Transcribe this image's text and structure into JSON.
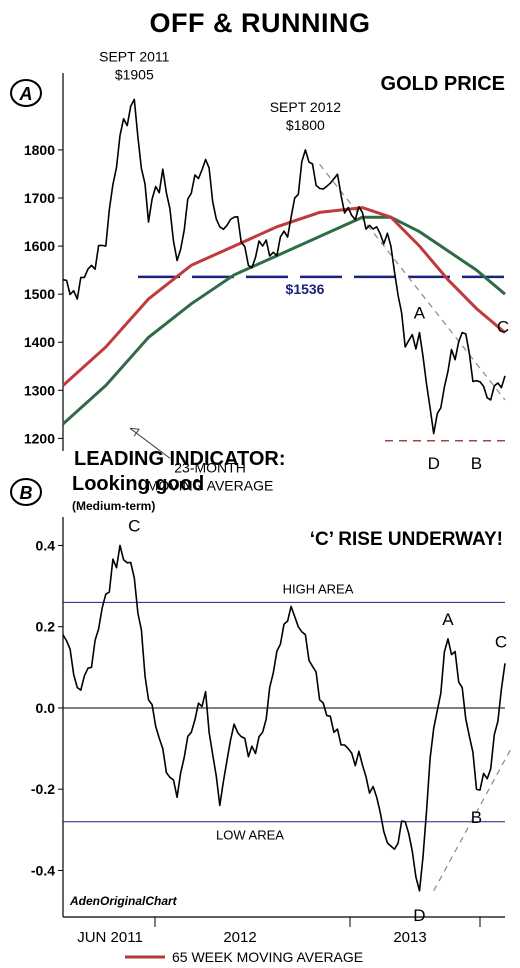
{
  "title": "OFF & RUNNING",
  "footer": {
    "legend_label": "65 WEEK MOVING AVERAGE",
    "legend_color": "#b33a3a"
  },
  "chart_data": [
    {
      "type": "line",
      "panel_letter": "A",
      "title": "GOLD PRICE",
      "ylim": [
        1180,
        1960
      ],
      "yticks": [
        1200,
        1300,
        1400,
        1500,
        1600,
        1700,
        1800
      ],
      "timeline": [
        "2011-04",
        "2013-11"
      ],
      "colors": {
        "price": "#000000",
        "ma65": "#c0393b",
        "ma23": "#2f6b45",
        "support": "#1a237e",
        "bottom": "#b04040",
        "trend": "#888888"
      },
      "series": [
        {
          "key": "price",
          "x": [
            "2011-04",
            "2011-05",
            "2011-06",
            "2011-07",
            "2011-08",
            "2011-09",
            "2011-10",
            "2011-11",
            "2011-12",
            "2012-01",
            "2012-02",
            "2012-03",
            "2012-04",
            "2012-05",
            "2012-06",
            "2012-07",
            "2012-08",
            "2012-09",
            "2012-10",
            "2012-11",
            "2012-12",
            "2013-01",
            "2013-02",
            "2013-03",
            "2013-04",
            "2013-05",
            "2013-06",
            "2013-07",
            "2013-08",
            "2013-09",
            "2013-10",
            "2013-11"
          ],
          "y": [
            1530,
            1490,
            1560,
            1600,
            1830,
            1905,
            1650,
            1760,
            1570,
            1710,
            1780,
            1640,
            1660,
            1560,
            1600,
            1580,
            1660,
            1800,
            1720,
            1740,
            1680,
            1670,
            1640,
            1600,
            1390,
            1420,
            1210,
            1340,
            1420,
            1320,
            1280,
            1330
          ]
        },
        {
          "key": "ma65",
          "x": [
            "2011-04",
            "2011-07",
            "2011-10",
            "2012-01",
            "2012-04",
            "2012-07",
            "2012-10",
            "2013-01",
            "2013-03",
            "2013-05",
            "2013-07",
            "2013-09",
            "2013-11"
          ],
          "y": [
            1310,
            1390,
            1490,
            1560,
            1600,
            1640,
            1670,
            1680,
            1660,
            1600,
            1530,
            1470,
            1420
          ]
        },
        {
          "key": "ma23",
          "x": [
            "2011-04",
            "2011-07",
            "2011-10",
            "2012-01",
            "2012-04",
            "2012-07",
            "2012-10",
            "2013-01",
            "2013-03",
            "2013-05",
            "2013-07",
            "2013-09",
            "2013-11"
          ],
          "y": [
            1230,
            1310,
            1410,
            1480,
            1540,
            1580,
            1620,
            1660,
            1660,
            1630,
            1590,
            1550,
            1500
          ]
        }
      ],
      "support_level": {
        "value": 1536,
        "label": "$1536"
      },
      "bottom_level": 1195,
      "trendline": {
        "x": [
          "2012-10",
          "2013-11"
        ],
        "y": [
          1770,
          1280
        ]
      },
      "annotations": [
        {
          "text": [
            "SEPT 2011",
            "$1905"
          ],
          "x": "2011-09",
          "y": 1905
        },
        {
          "text": [
            "SEPT 2012",
            "$1800"
          ],
          "x": "2012-09",
          "y": 1800
        },
        {
          "text": [
            "A"
          ],
          "x": "2013-05",
          "y": 1420
        },
        {
          "text": [
            "C"
          ],
          "x": "2013-11",
          "y": 1420
        },
        {
          "text": [
            "D"
          ],
          "x": "2013-06",
          "y": 1195
        },
        {
          "text": [
            "B"
          ],
          "x": "2013-09",
          "y": 1195
        },
        {
          "text": [
            "23-MONTH",
            "MOVING AVERAGE"
          ],
          "x": "2011-08",
          "y": 1300
        }
      ]
    },
    {
      "type": "line",
      "panel_letter": "B",
      "title": "LEADING INDICATOR:",
      "subtitle": "Looking good",
      "subtitle_note": "(Medium-term)",
      "headline": "‘C’ RISE UNDERWAY!",
      "ylim": [
        -0.49,
        0.47
      ],
      "yticks": [
        0.4,
        0.2,
        0.0,
        -0.2,
        -0.4
      ],
      "ytick_labels": [
        "0.4",
        "0.2",
        "0.0",
        "-0.2",
        "-0.4"
      ],
      "xticks": [
        "JUN 2011",
        "2012",
        "2013"
      ],
      "timeline": [
        "2011-04",
        "2013-11"
      ],
      "series": [
        {
          "key": "indicator",
          "x": [
            "2011-04",
            "2011-05",
            "2011-06",
            "2011-07",
            "2011-08",
            "2011-09",
            "2011-10",
            "2011-11",
            "2011-12",
            "2012-01",
            "2012-02",
            "2012-03",
            "2012-04",
            "2012-05",
            "2012-06",
            "2012-07",
            "2012-08",
            "2012-09",
            "2012-10",
            "2012-11",
            "2012-12",
            "2013-01",
            "2013-02",
            "2013-03",
            "2013-04",
            "2013-05",
            "2013-06",
            "2013-07",
            "2013-08",
            "2013-09",
            "2013-10",
            "2013-11"
          ],
          "y": [
            0.18,
            0.05,
            0.1,
            0.28,
            0.4,
            0.32,
            0.02,
            -0.1,
            -0.22,
            -0.06,
            0.04,
            -0.24,
            -0.04,
            -0.12,
            -0.06,
            0.14,
            0.25,
            0.18,
            0.02,
            -0.06,
            -0.1,
            -0.14,
            -0.22,
            -0.34,
            -0.28,
            -0.45,
            -0.05,
            0.17,
            0.05,
            -0.2,
            -0.15,
            0.11
          ]
        }
      ],
      "high_area": {
        "value": 0.26,
        "label": "HIGH AREA"
      },
      "low_area": {
        "value": -0.28,
        "label": "LOW  AREA"
      },
      "trendline": {
        "x": [
          "2013-06",
          "2013-11"
        ],
        "y": [
          -0.45,
          -0.12
        ]
      },
      "annotations": [
        {
          "text": "C",
          "x": "2011-09",
          "y": 0.4
        },
        {
          "text": "A",
          "x": "2013-07",
          "y": 0.17
        },
        {
          "text": "C",
          "x": "2013-11",
          "y": 0.11
        },
        {
          "text": "B",
          "x": "2013-09",
          "y": -0.2
        },
        {
          "text": "D",
          "x": "2013-05",
          "y": -0.45
        }
      ],
      "watermark": "AdenOriginalChart"
    }
  ]
}
